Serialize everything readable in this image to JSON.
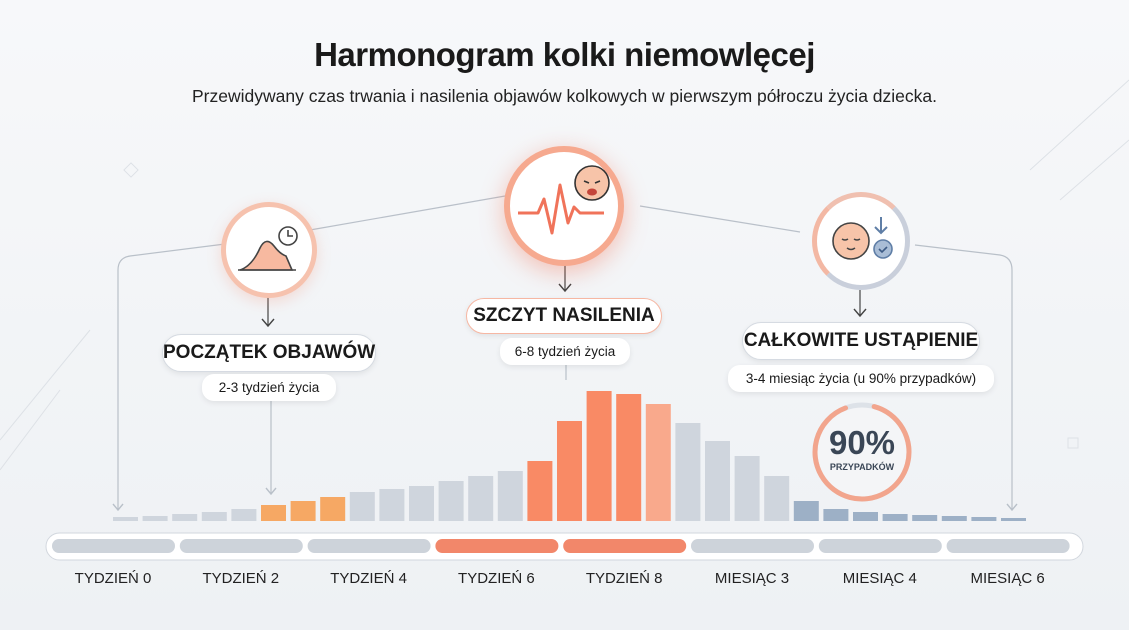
{
  "header": {
    "title": "Harmonogram kolki niemowlęcej",
    "subtitle": "Przewidywany czas trwania i nasilenia objawów kolkowych w pierwszym półroczu życia dziecka."
  },
  "stages": [
    {
      "title": "POCZĄTEK OBJAWÓW",
      "detail": "2-3 tydzień życia",
      "icon": "rising-curve-clock-icon"
    },
    {
      "title": "SZCZYT NASILENIA",
      "detail": "6-8 tydzień życia",
      "icon": "crying-baby-heartbeat-icon"
    },
    {
      "title": "CAŁKOWITE USTĄPIENIE",
      "detail": "3-4 miesiąc życia (u 90% przypadków)",
      "icon": "calm-baby-check-icon"
    }
  ],
  "badge": {
    "value": "90%",
    "label": "PRZYPADKÓW",
    "fraction": 0.9
  },
  "timeline": {
    "labels": [
      "TYDZIEŃ 0",
      "TYDZIEŃ 2",
      "TYDZIEŃ 4",
      "TYDZIEŃ 6",
      "TYDZIEŃ 8",
      "MIESIĄC 3",
      "MIESIĄC 4",
      "MIESIĄC 6"
    ],
    "highlighted": [
      3,
      4
    ]
  },
  "intensity": {
    "values": [
      4,
      5,
      7,
      9,
      12,
      16,
      20,
      24,
      29,
      32,
      35,
      40,
      45,
      50,
      60,
      100,
      130,
      127,
      117,
      98,
      80,
      65,
      45,
      20,
      12,
      9,
      7,
      6,
      5,
      4,
      3
    ],
    "phases": [
      "g",
      "g",
      "g",
      "g",
      "g",
      "o",
      "o",
      "o",
      "g",
      "g",
      "g",
      "g",
      "g",
      "g",
      "r",
      "r",
      "r",
      "r",
      "l",
      "g",
      "g",
      "g",
      "g",
      "b",
      "b",
      "b",
      "b",
      "b",
      "b",
      "b",
      "b"
    ]
  },
  "colors": {
    "gray": "#cfd5dd",
    "orange": "#f6a864",
    "red": "#f98a65",
    "lightred": "#f9a98c",
    "blue": "#9db0c6",
    "accent": "#f2876a",
    "segment_gray": "#cdd3da"
  }
}
